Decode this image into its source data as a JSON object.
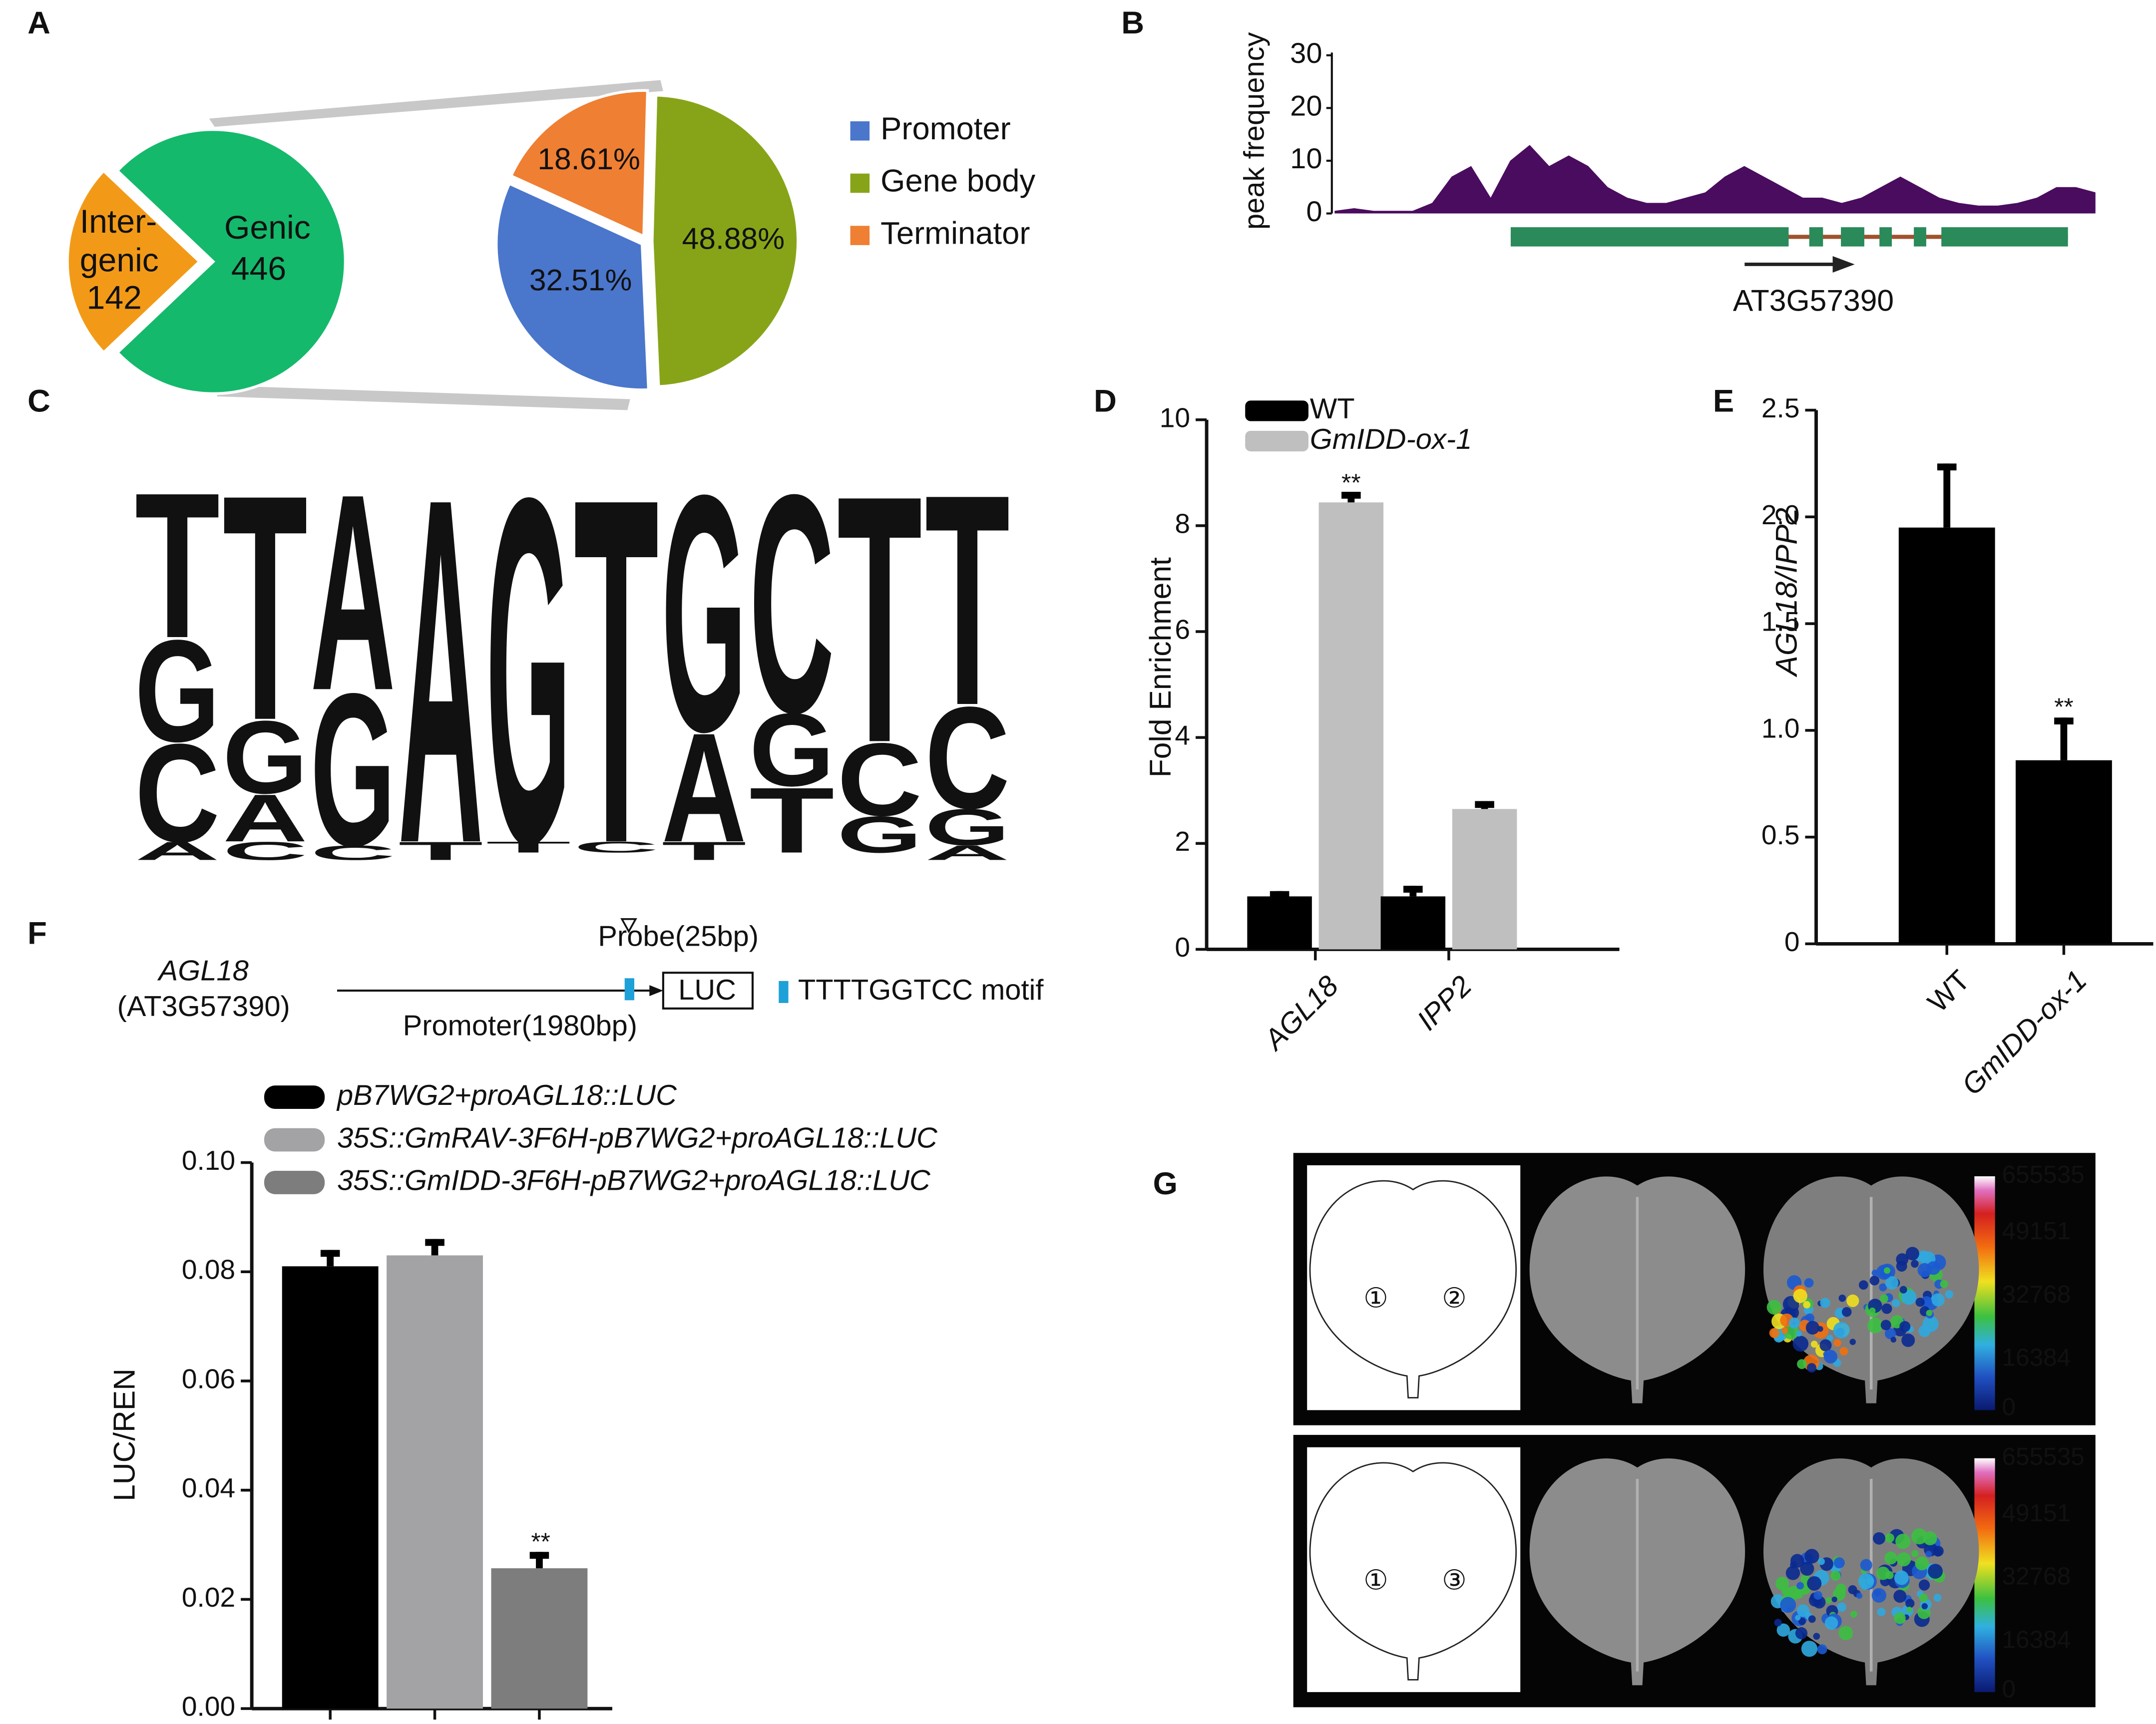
{
  "panel_labels": [
    "A",
    "B",
    "C",
    "D",
    "E",
    "F",
    "G"
  ],
  "chart_data": [
    {
      "type": "pie",
      "categories": [
        "Inter-genic",
        "Genic"
      ],
      "values": [
        142,
        446
      ],
      "colors": [
        "#f29a17",
        "#14b96c"
      ]
    },
    {
      "type": "pie",
      "categories": [
        "Promoter",
        "Gene body",
        "Terminator"
      ],
      "values": [
        32.51,
        48.88,
        18.61
      ],
      "value_labels": [
        "32.51%",
        "48.88%",
        "18.61%"
      ],
      "colors": [
        "#4a76cc",
        "#87a418",
        "#ef7f32"
      ],
      "legend": "right"
    },
    {
      "type": "area",
      "ylabel": "peak frequency",
      "values": [
        0.5,
        1,
        0.5,
        0.5,
        0.5,
        2,
        7,
        9,
        3,
        10,
        13,
        9,
        11,
        9,
        5,
        3,
        2,
        2,
        3,
        4,
        7,
        9,
        7,
        5,
        3,
        3,
        2,
        3,
        5,
        7,
        5,
        3,
        2,
        1.5,
        1.5,
        2,
        3,
        5,
        5,
        4
      ],
      "ylim": [
        0,
        30
      ],
      "yticks": [
        0,
        10,
        20,
        30
      ],
      "color": "#4a0c5e",
      "annotation": "AT3G57390"
    },
    {
      "type": "logo",
      "letter_colors": {
        "A": "#3bb034",
        "C": "#0b4da2",
        "G": "#f5a81c",
        "T": "#c8202a"
      },
      "columns": [
        {
          "letters": [
            "T",
            "G",
            "C",
            "A"
          ],
          "values": [
            0.4,
            0.28,
            0.27,
            0.05
          ]
        },
        {
          "letters": [
            "T",
            "G",
            "A",
            "C"
          ],
          "values": [
            0.62,
            0.2,
            0.13,
            0.05
          ]
        },
        {
          "letters": [
            "A",
            "G",
            "C"
          ],
          "values": [
            0.54,
            0.42,
            0.04
          ]
        },
        {
          "letters": [
            "A",
            "T"
          ],
          "values": [
            0.95,
            0.05
          ]
        },
        {
          "letters": [
            "G",
            "T"
          ],
          "values": [
            0.95,
            0.03
          ]
        },
        {
          "letters": [
            "T",
            "C"
          ],
          "values": [
            0.95,
            0.03
          ]
        },
        {
          "letters": [
            "G",
            "A",
            "T"
          ],
          "values": [
            0.65,
            0.3,
            0.05
          ]
        },
        {
          "letters": [
            "C",
            "G",
            "T"
          ],
          "values": [
            0.6,
            0.2,
            0.18
          ]
        },
        {
          "letters": [
            "T",
            "C",
            "G"
          ],
          "values": [
            0.68,
            0.2,
            0.1
          ]
        },
        {
          "letters": [
            "T",
            "C",
            "G",
            "A"
          ],
          "values": [
            0.58,
            0.28,
            0.1,
            0.04
          ]
        }
      ]
    },
    {
      "type": "bar",
      "ylabel": "Fold Enrichment",
      "categories": [
        "AGL18",
        "IPP2"
      ],
      "series": [
        {
          "name": "WT",
          "color": "#000000",
          "values": [
            1.0,
            1.0
          ],
          "errors": [
            0.1,
            0.2
          ]
        },
        {
          "name": "GmIDD-ox-1",
          "color": "#bfbfbf",
          "values": [
            8.44,
            2.65
          ],
          "errors": [
            0.2,
            0.15
          ]
        }
      ],
      "ylim": [
        0,
        10
      ],
      "yticks": [
        0,
        2,
        4,
        6,
        8,
        10
      ],
      "legend": "upper left",
      "annotation": "**"
    },
    {
      "type": "bar",
      "ylabel": "AGL18/IPP2",
      "categories": [
        "WT",
        "GmIDD-ox-1"
      ],
      "series": [
        {
          "color": "#000000",
          "values": [
            1.95,
            0.86
          ],
          "errors": [
            0.3,
            0.2
          ]
        }
      ],
      "ylim": [
        0,
        2.5
      ],
      "yticks": [
        0,
        0.5,
        {
          "value": 1,
          "label": "1.0"
        },
        1.5,
        {
          "value": 2,
          "label": "2.0"
        },
        2.5
      ],
      "annotation": "**"
    },
    {
      "type": "bar",
      "ylabel": "LUC/REN",
      "categories": [
        null,
        null,
        null
      ],
      "series": [
        {
          "name": "pB7WG2+proAGL18::LUC",
          "color": "#000000",
          "values": [
            0.081,
            null,
            null
          ],
          "errors": [
            0.003,
            null,
            null
          ]
        },
        {
          "name": "35S::GmRAV-3F6H-pB7WG2+proAGL18::LUC",
          "color": "#a3a3a5",
          "values": [
            null,
            0.083,
            null
          ],
          "errors": [
            null,
            0.003,
            null
          ]
        },
        {
          "name": "35S::GmIDD-3F6H-pB7WG2+proAGL18::LUC",
          "color": "#7d7d7d",
          "values": [
            null,
            null,
            0.0257
          ],
          "errors": [
            null,
            null,
            0.003
          ]
        }
      ],
      "ylim": [
        0,
        0.1
      ],
      "yticks": [
        {
          "value": 0,
          "label": "0.00"
        },
        {
          "value": 0.02,
          "label": "0.02"
        },
        {
          "value": 0.04,
          "label": "0.04"
        },
        {
          "value": 0.06,
          "label": "0.06"
        },
        {
          "value": 0.08,
          "label": "0.08"
        },
        {
          "value": 0.1,
          "label": "0.10"
        }
      ],
      "legend": "upper left",
      "annotation": "**"
    }
  ],
  "diagram": {
    "gene": "AGL18",
    "locus": "(AT3G57390)",
    "probe": "Probe(25bp)",
    "reporter": "LUC",
    "motif": "TTTTGGTCC motif",
    "promoter": "Promoter(1980bp)"
  },
  "imaging": {
    "rows": [
      {
        "sites": [
          "①",
          "②"
        ],
        "colorbar": [
          "655535",
          "49151",
          "32768",
          "16384",
          "0"
        ]
      },
      {
        "sites": [
          "①",
          "③"
        ],
        "colorbar": [
          "655535",
          "49151",
          "32768",
          "16384",
          "0"
        ]
      }
    ]
  }
}
